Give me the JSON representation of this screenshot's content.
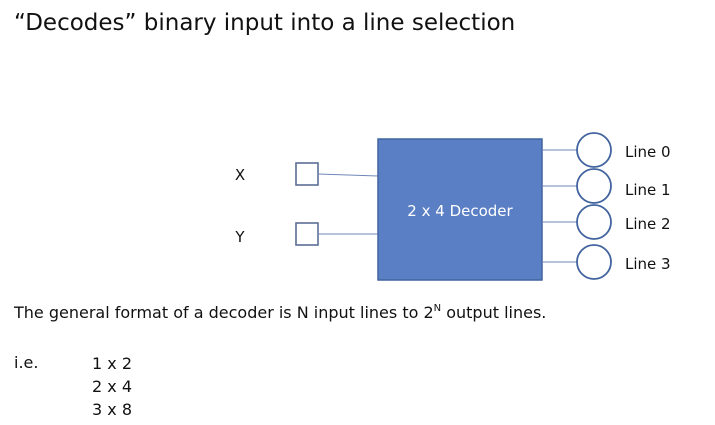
{
  "title": "“Decodes” binary input into a line selection",
  "diagram": {
    "inputs": [
      {
        "label": "X"
      },
      {
        "label": "Y"
      }
    ],
    "decoder_label": "2 x 4 Decoder",
    "outputs": [
      {
        "label": "Line 0"
      },
      {
        "label": "Line 1"
      },
      {
        "label": "Line 2"
      },
      {
        "label": "Line 3"
      }
    ],
    "colors": {
      "decoder_fill": "#5b7fc4",
      "decoder_stroke": "#41649f",
      "decoder_text": "#ffffff",
      "wire": "#6f87b8",
      "input_box": "#5b6e96",
      "output_circle": "#41649f"
    }
  },
  "format_text": {
    "before": "The general format of a decoder is N input lines to 2",
    "exponent": "N",
    "after": " output lines."
  },
  "ie_label": "i.e.",
  "examples": [
    "1 x 2",
    "2 x 4",
    "3 x 8"
  ]
}
